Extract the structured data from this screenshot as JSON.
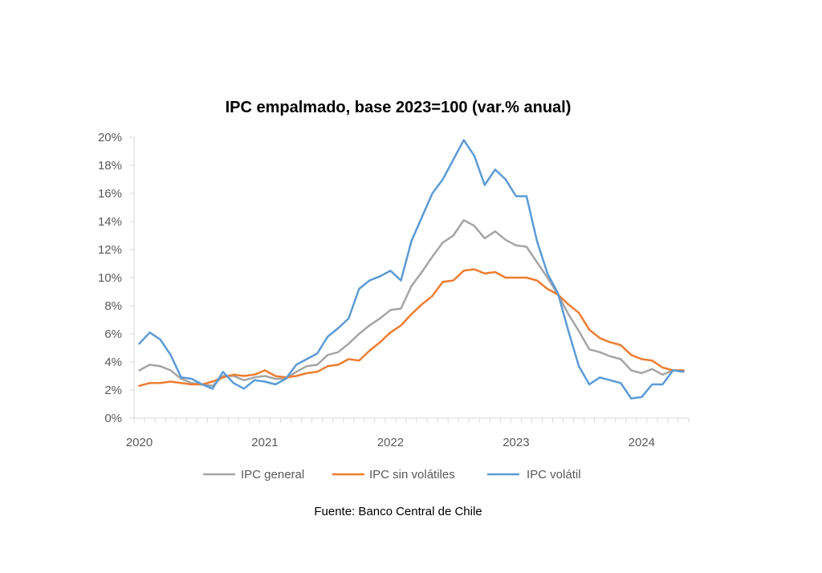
{
  "chart_data": {
    "type": "line",
    "title": "IPC empalmado, base 2023=100 (var.% anual)",
    "xlabel": "",
    "ylabel": "",
    "source": "Fuente: Banco Central de Chile",
    "ylim": [
      0,
      20
    ],
    "y_ticks": [
      0,
      2,
      4,
      6,
      8,
      10,
      12,
      14,
      16,
      18,
      20
    ],
    "y_tick_labels": [
      "0%",
      "2%",
      "4%",
      "6%",
      "8%",
      "10%",
      "12%",
      "14%",
      "16%",
      "18%",
      "20%"
    ],
    "x_start": "2020-01",
    "x_end": "2024-05",
    "n_months": 53,
    "x_tick_labels": [
      {
        "label": "2020",
        "month_index": 0
      },
      {
        "label": "2021",
        "month_index": 12
      },
      {
        "label": "2022",
        "month_index": 24
      },
      {
        "label": "2023",
        "month_index": 36
      },
      {
        "label": "2024",
        "month_index": 48
      }
    ],
    "grid": false,
    "legend_position": "bottom",
    "series": [
      {
        "name": "IPC general",
        "color": "#A5A5A5",
        "values": [
          3.4,
          3.8,
          3.7,
          3.4,
          2.8,
          2.5,
          2.4,
          2.3,
          3.0,
          3.0,
          2.7,
          2.9,
          3.0,
          2.8,
          2.8,
          3.3,
          3.7,
          3.8,
          4.5,
          4.7,
          5.3,
          6.0,
          6.6,
          7.1,
          7.7,
          7.8,
          9.4,
          10.4,
          11.5,
          12.5,
          13.0,
          14.1,
          13.7,
          12.8,
          13.3,
          12.7,
          12.3,
          12.2,
          11.1,
          10.0,
          8.8,
          7.4,
          6.2,
          4.9,
          4.7,
          4.4,
          4.2,
          3.4,
          3.2,
          3.5,
          3.1,
          3.4,
          3.4
        ]
      },
      {
        "name": "IPC sin volátiles",
        "color": "#ED7D31",
        "values": [
          2.3,
          2.5,
          2.5,
          2.6,
          2.5,
          2.4,
          2.4,
          2.6,
          2.9,
          3.1,
          3.0,
          3.1,
          3.4,
          3.0,
          2.9,
          3.0,
          3.2,
          3.3,
          3.7,
          3.8,
          4.2,
          4.1,
          4.8,
          5.4,
          6.1,
          6.6,
          7.4,
          8.1,
          8.7,
          9.7,
          9.8,
          10.5,
          10.6,
          10.3,
          10.4,
          10.0,
          10.0,
          10.0,
          9.8,
          9.2,
          8.8,
          8.1,
          7.5,
          6.3,
          5.7,
          5.4,
          5.2,
          4.5,
          4.2,
          4.1,
          3.6,
          3.4,
          3.4
        ]
      },
      {
        "name": "IPC volátil",
        "color": "#5B9BD5",
        "values": [
          5.3,
          6.1,
          5.6,
          4.5,
          2.9,
          2.8,
          2.4,
          2.1,
          3.3,
          2.5,
          2.1,
          2.7,
          2.6,
          2.4,
          2.8,
          3.8,
          4.2,
          4.6,
          5.8,
          6.4,
          7.1,
          9.2,
          9.8,
          10.1,
          10.5,
          9.8,
          12.6,
          14.3,
          16.0,
          17.0,
          18.4,
          19.8,
          18.7,
          16.6,
          17.7,
          17.0,
          15.8,
          15.8,
          12.6,
          10.3,
          8.9,
          6.2,
          3.7,
          2.4,
          2.9,
          2.7,
          2.5,
          1.4,
          1.5,
          2.4,
          2.4,
          3.4,
          3.3
        ]
      }
    ],
    "axis_color": "#D9D9D9"
  }
}
